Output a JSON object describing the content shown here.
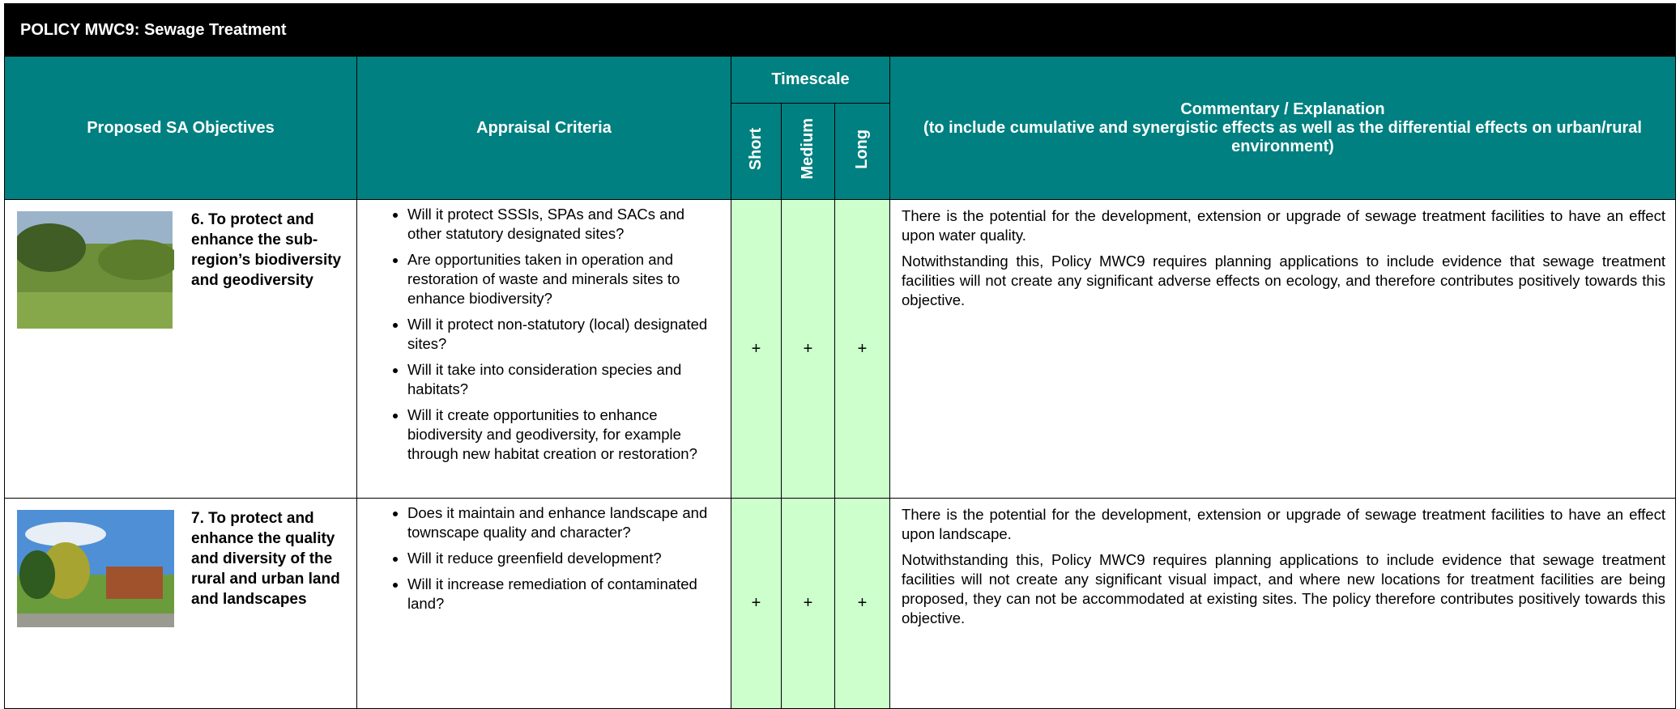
{
  "title": "POLICY MWC9: Sewage Treatment",
  "header": {
    "objectives": "Proposed SA Objectives",
    "criteria": "Appraisal Criteria",
    "timescale": "Timescale",
    "short": "Short",
    "medium": "Medium",
    "long": "Long",
    "commentary_title": "Commentary / Explanation",
    "commentary_sub": "(to include cumulative and synergistic effects as well as the differential effects on urban/rural environment)"
  },
  "rows": [
    {
      "objective": "6. To protect and enhance the sub-region’s biodiversity and geodiversity",
      "criteria": [
        "Will it protect SSSIs, SPAs and SACs and other statutory designated sites?",
        "Are opportunities taken in operation and restoration of waste and minerals sites to enhance biodiversity?",
        "Will it protect non-statutory (local) designated sites?",
        "Will it take into consideration species and habitats?",
        "Will it create opportunities to enhance biodiversity and geodiversity, for example through new habitat creation or restoration?"
      ],
      "short": "+",
      "medium": "+",
      "long": "+",
      "commentary": [
        "There is the potential for the development, extension or upgrade of sewage treatment facilities to have an effect upon water quality.",
        "Notwithstanding this, Policy MWC9 requires planning applications to include evidence that sewage treatment facilities will not create any significant adverse effects on ecology, and therefore contributes positively towards this objective."
      ]
    },
    {
      "objective": "7. To protect and enhance the quality and diversity of the rural and urban land and landscapes",
      "criteria": [
        "Does it maintain and enhance landscape and townscape quality and character?",
        "Will it reduce greenfield development?",
        "Will it increase remediation of contaminated land?"
      ],
      "short": "+",
      "medium": "+",
      "long": "+",
      "commentary": [
        "There is the potential for the development, extension or upgrade of sewage treatment facilities to have an effect upon landscape.",
        "Notwithstanding this, Policy MWC9 requires planning applications to include evidence that sewage treatment facilities will not create any significant visual impact, and where new locations for treatment facilities are being proposed, they can not be accommodated at existing sites. The policy therefore contributes positively towards this objective."
      ]
    }
  ]
}
